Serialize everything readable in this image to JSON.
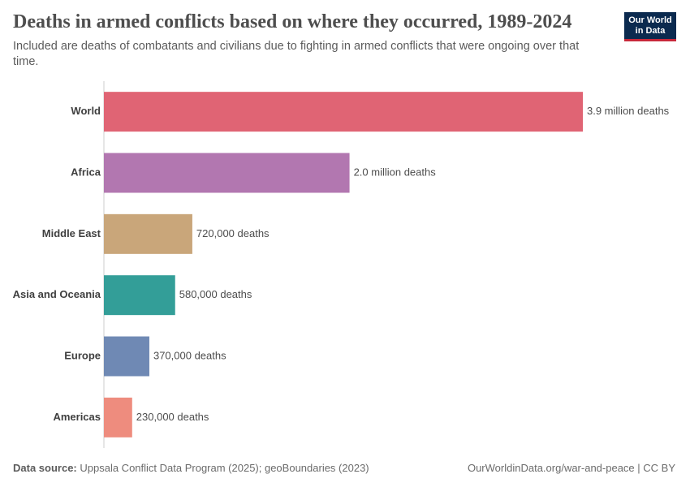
{
  "chart_data": {
    "type": "hbar",
    "title": "Deaths in armed conflicts based on where they occurred, 1989-2024",
    "subtitle": "Included are deaths of combatants and civilians due to fighting in armed conflicts that were ongoing over that time.",
    "logo": "Our World in Data",
    "categories": [
      "World",
      "Africa",
      "Middle East",
      "Asia and Oceania",
      "Europe",
      "Americas"
    ],
    "values": [
      3900000,
      2000000,
      720000,
      580000,
      370000,
      230000
    ],
    "value_labels": [
      "3.9 million deaths",
      "2.0 million deaths",
      "720,000 deaths",
      "580,000 deaths",
      "370,000 deaths",
      "230,000 deaths"
    ],
    "colors": [
      "#e06474",
      "#b277b0",
      "#c9a67a",
      "#339e98",
      "#6f89b4",
      "#ee8c7e"
    ],
    "source_label": "Data source:",
    "source": "Uppsala Conflict Data Program (2025); geoBoundaries (2023)",
    "credit": "OurWorldinData.org/war-and-peace | CC BY"
  }
}
